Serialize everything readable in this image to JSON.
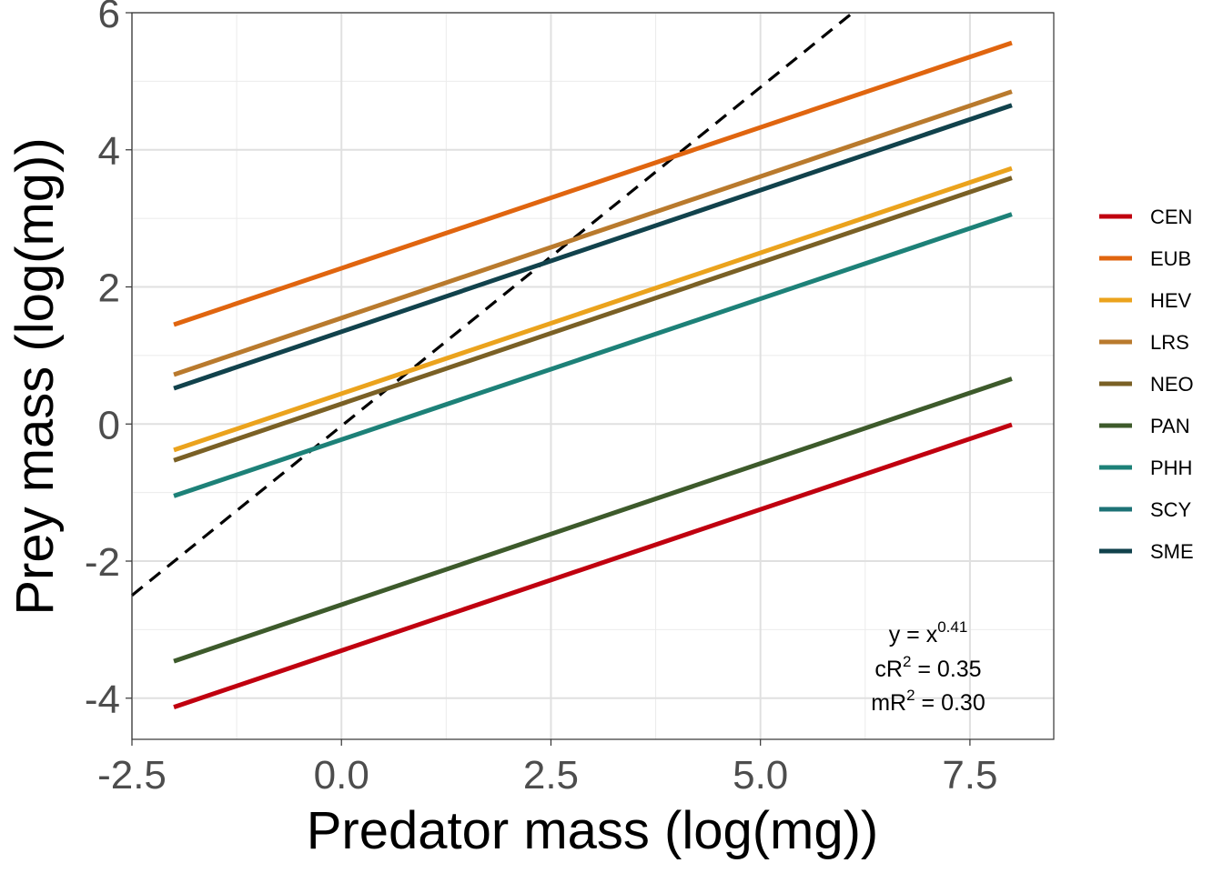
{
  "chart_data": {
    "type": "line",
    "xlabel": "Predator mass (log(mg))",
    "ylabel": "Prey mass (log(mg))",
    "xlim": [
      -2.5,
      8.5
    ],
    "ylim": [
      -4.6,
      6.0
    ],
    "xticks": [
      -2.5,
      0.0,
      2.5,
      5.0,
      7.5
    ],
    "xtick_labels": [
      "-2.5",
      "0.0",
      "2.5",
      "5.0",
      "7.5"
    ],
    "yticks": [
      -4,
      -2,
      0,
      2,
      4,
      6
    ],
    "ytick_labels": [
      "-4",
      "-2",
      "0",
      "2",
      "4",
      "6"
    ],
    "grid": true,
    "legend_position": "right",
    "series": [
      {
        "name": "CEN",
        "color": "#c0000f",
        "x": [
          -2.0,
          8.0
        ],
        "y": [
          -4.13,
          -0.01
        ]
      },
      {
        "name": "EUB",
        "color": "#e0650f",
        "x": [
          -2.0,
          8.0
        ],
        "y": [
          1.45,
          5.56
        ]
      },
      {
        "name": "HEV",
        "color": "#eba31d",
        "x": [
          -2.0,
          8.0
        ],
        "y": [
          -0.38,
          3.73
        ]
      },
      {
        "name": "LRS",
        "color": "#b97a2d",
        "x": [
          -2.0,
          8.0
        ],
        "y": [
          0.72,
          4.85
        ]
      },
      {
        "name": "NEO",
        "color": "#7a6025",
        "x": [
          -2.0,
          8.0
        ],
        "y": [
          -0.53,
          3.59
        ]
      },
      {
        "name": "PAN",
        "color": "#3d5a2b",
        "x": [
          -2.0,
          8.0
        ],
        "y": [
          -3.46,
          0.66
        ]
      },
      {
        "name": "PHH",
        "color": "#1d8178",
        "x": [
          -2.0,
          8.0
        ],
        "y": [
          -1.05,
          3.06
        ]
      },
      {
        "name": "SCY",
        "color": "#1d7276",
        "x": null,
        "y": null
      },
      {
        "name": "SME",
        "color": "#11424c",
        "x": [
          -2.0,
          8.0
        ],
        "y": [
          0.52,
          4.65
        ]
      }
    ],
    "reference_line": {
      "style": "dashed",
      "color": "#000000",
      "x": [
        -2.5,
        6.1
      ],
      "y": [
        -2.5,
        6.0
      ]
    },
    "annotation": {
      "line1_base": "y = x",
      "line1_sup": "0.41",
      "line2_base": "cR",
      "line2_sup": "2",
      "line2_rest": " = 0.35",
      "line3_base": "mR",
      "line3_sup": "2",
      "line3_rest": " = 0.30"
    }
  }
}
